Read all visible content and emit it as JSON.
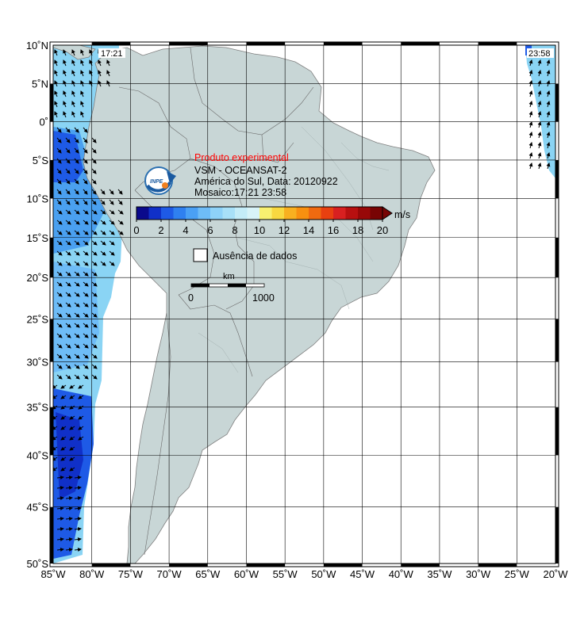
{
  "map": {
    "product_label": "Produto experimental",
    "title_line1": "VSM - OCEANSAT-2",
    "title_line2": "América do Sul, Data: 20120922",
    "title_line3": "Mosaico:17:21 23:58",
    "logo_text": "INPE",
    "colorbar": {
      "unit": "m/s",
      "ticks": [
        "0",
        "2",
        "4",
        "6",
        "8",
        "10",
        "12",
        "14",
        "16",
        "18",
        "20"
      ],
      "colors": [
        "#0a0a8c",
        "#1030c8",
        "#1e5ae6",
        "#2f80f0",
        "#4aa0f5",
        "#6ebcf7",
        "#8ed2f8",
        "#a8e0f8",
        "#c4ecf8",
        "#d8f3f8",
        "#f8f070",
        "#f8d840",
        "#f8b020",
        "#f89010",
        "#f06a10",
        "#e84010",
        "#d82020",
        "#b81010",
        "#980808",
        "#780404"
      ]
    },
    "missing_data_label": "Ausência de dados",
    "scale": {
      "unit_label": "km",
      "start_label": "0",
      "end_label": "1000"
    },
    "pass_times": {
      "left": "17:21",
      "right": "23:58"
    },
    "lat_labels": [
      "10˚N",
      "5˚N",
      "0˚",
      "5˚S",
      "10˚S",
      "15˚S",
      "20˚S",
      "25˚S",
      "30˚S",
      "35˚S",
      "40˚S",
      "45˚S",
      "50˚S"
    ],
    "lon_labels": [
      "85˚W",
      "80˚W",
      "75˚W",
      "70˚W",
      "65˚W",
      "60˚W",
      "55˚W",
      "50˚W",
      "45˚W",
      "40˚W",
      "35˚W",
      "30˚W",
      "25˚W",
      "20˚W"
    ],
    "colors": {
      "ocean": "#ffffff",
      "land": "#c8d6d6",
      "grid": "#000000"
    }
  }
}
